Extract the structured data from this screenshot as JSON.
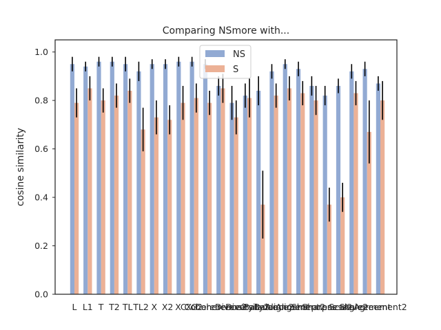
{
  "chart_data": {
    "type": "bar",
    "title": "Comparing NSmore with...",
    "xlabel": "",
    "ylabel": "cosine similarity",
    "ylim": [
      0,
      1.05
    ],
    "yticks": [
      0.0,
      0.2,
      0.4,
      0.6,
      0.8,
      1.0
    ],
    "ytick_labels": [
      "0.0",
      "0.2",
      "0.4",
      "0.6",
      "0.8",
      "1.0"
    ],
    "grid": false,
    "legend_position": "top-center",
    "categories": [
      "L",
      "L1",
      "T",
      "T2",
      "TL",
      "TL2",
      "X",
      "X2",
      "XC",
      "XC2",
      "Coherence",
      "Coherence2",
      "Diversity",
      "Diversity2",
      "Balance",
      "Balance2",
      "Alignment",
      "Alignment2",
      "Sharpness",
      "Sharpness2",
      "Scale",
      "Scale2",
      "Agreement",
      "Agreement2"
    ],
    "series": [
      {
        "name": "NS",
        "color": "#92aad3",
        "values": [
          0.95,
          0.94,
          0.96,
          0.96,
          0.95,
          0.92,
          0.95,
          0.95,
          0.96,
          0.96,
          0.95,
          0.86,
          0.79,
          0.82,
          0.84,
          0.92,
          0.95,
          0.93,
          0.86,
          0.82,
          0.86,
          0.92,
          0.93,
          0.87
        ],
        "errors": [
          0.03,
          0.02,
          0.02,
          0.02,
          0.03,
          0.04,
          0.02,
          0.02,
          0.02,
          0.02,
          0.02,
          0.04,
          0.07,
          0.05,
          0.06,
          0.03,
          0.02,
          0.03,
          0.04,
          0.04,
          0.03,
          0.03,
          0.03,
          0.03
        ]
      },
      {
        "name": "S",
        "color": "#ecb196",
        "values": [
          0.79,
          0.85,
          0.8,
          0.82,
          0.84,
          0.68,
          0.73,
          0.72,
          0.79,
          0.81,
          0.79,
          0.85,
          0.73,
          0.81,
          0.37,
          0.82,
          0.85,
          0.83,
          0.8,
          0.37,
          0.4,
          0.83,
          0.67,
          0.8
        ]
      }
    ]
  }
}
